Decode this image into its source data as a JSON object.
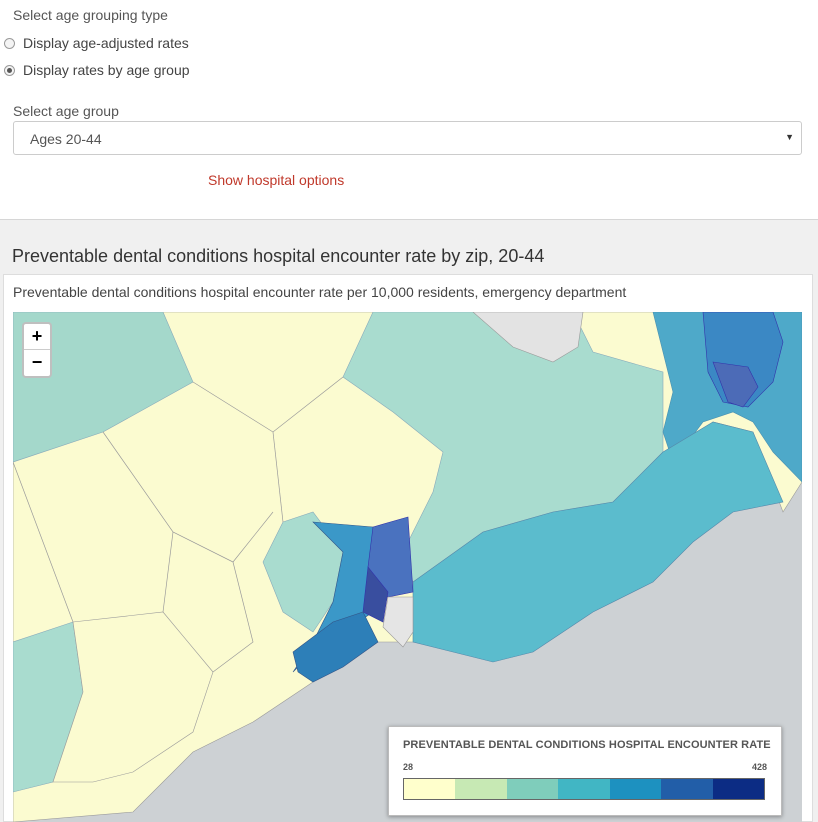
{
  "age_grouping": {
    "label": "Select age grouping type",
    "options": [
      {
        "label": "Display age-adjusted rates",
        "checked": false
      },
      {
        "label": "Display rates by age group",
        "checked": true
      }
    ]
  },
  "age_group": {
    "label": "Select age group",
    "value": "Ages 20-44"
  },
  "hospital_link": "Show hospital options",
  "map_section": {
    "title": "Preventable dental conditions hospital encounter rate by zip, 20-44",
    "panel_heading": "Preventable dental conditions hospital encounter rate per 10,000 residents, emergency department"
  },
  "zoom": {
    "in": "+",
    "out": "−"
  },
  "legend": {
    "title": "PREVENTABLE DENTAL CONDITIONS HOSPITAL ENCOUNTER RATE",
    "min": "28",
    "max": "428",
    "colors": [
      "#ffffcc",
      "#c7e9b4",
      "#7fcdbb",
      "#41b6c4",
      "#1d91c0",
      "#225ea8",
      "#0c2c84"
    ]
  }
}
